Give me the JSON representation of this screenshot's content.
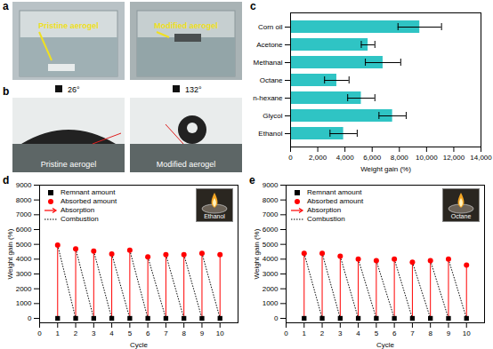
{
  "chart_data": [
    {
      "type": "bar",
      "title": "c",
      "orientation": "horizontal",
      "categories": [
        "Corn oil",
        "Acetone",
        "Methanal",
        "Octane",
        "n-hexane",
        "Glycol",
        "Ethanol"
      ],
      "values": [
        9500,
        5700,
        6800,
        3400,
        5200,
        7500,
        3900
      ],
      "errors": [
        1600,
        500,
        1300,
        900,
        1000,
        1000,
        1000
      ],
      "color": "#2fc4c4",
      "xlabel": "Weight gain (%)",
      "xlim": [
        0,
        14000
      ],
      "xticks": [
        0,
        2000,
        4000,
        6000,
        8000,
        10000,
        12000,
        14000
      ],
      "grid": false
    },
    {
      "type": "scatter",
      "title": "d",
      "x": [
        1,
        2,
        3,
        4,
        5,
        6,
        7,
        8,
        9,
        10
      ],
      "series": [
        {
          "name": "Remnant amount",
          "color": "#000000",
          "marker": "square",
          "values": [
            0,
            0,
            0,
            0,
            0,
            0,
            0,
            0,
            0,
            0
          ]
        },
        {
          "name": "Absorbed amount",
          "color": "#ff0000",
          "marker": "circle",
          "values": [
            4950,
            4700,
            4550,
            4350,
            4600,
            4150,
            4300,
            4300,
            4400,
            4300
          ]
        }
      ],
      "connectors": [
        {
          "name": "Absorption",
          "color": "#ff0000",
          "line_style": "solid"
        },
        {
          "name": "Combustion",
          "color": "#000000",
          "line_style": "dotted"
        }
      ],
      "inset_label": "Ethanol",
      "xlabel": "Cycle",
      "ylabel": "Weight gain (%)",
      "xlim": [
        0,
        11
      ],
      "xticks": [
        0,
        1,
        2,
        3,
        4,
        5,
        6,
        7,
        8,
        9,
        10
      ],
      "ylim": [
        -300,
        9000
      ],
      "yticks": [
        0,
        1000,
        2000,
        3000,
        4000,
        5000,
        6000,
        7000,
        8000,
        9000
      ],
      "legend": "top-left",
      "grid": false
    },
    {
      "type": "scatter",
      "title": "e",
      "x": [
        1,
        2,
        3,
        4,
        5,
        6,
        7,
        8,
        9,
        10
      ],
      "series": [
        {
          "name": "Remnant amount",
          "color": "#000000",
          "marker": "square",
          "values": [
            0,
            0,
            0,
            0,
            0,
            0,
            0,
            0,
            0,
            0
          ]
        },
        {
          "name": "Absorbed amount",
          "color": "#ff0000",
          "marker": "circle",
          "values": [
            4400,
            4400,
            4200,
            4000,
            3900,
            4000,
            3800,
            3900,
            4000,
            3600
          ]
        }
      ],
      "connectors": [
        {
          "name": "Absorption",
          "color": "#ff0000",
          "line_style": "solid"
        },
        {
          "name": "Combustion",
          "color": "#000000",
          "line_style": "dotted"
        }
      ],
      "inset_label": "Octane",
      "xlabel": "Cycle",
      "ylabel": "Weight gain (%)",
      "xlim": [
        0,
        11
      ],
      "xticks": [
        0,
        1,
        2,
        3,
        4,
        5,
        6,
        7,
        8,
        9,
        10
      ],
      "ylim": [
        -300,
        9000
      ],
      "yticks": [
        0,
        1000,
        2000,
        3000,
        4000,
        5000,
        6000,
        7000,
        8000,
        9000
      ],
      "legend": "top-left",
      "grid": false
    }
  ],
  "photos": [
    {
      "title": "a",
      "labels": [
        "Pristine aerogel",
        "Modified aerogel"
      ]
    },
    {
      "title": "b",
      "images": [
        {
          "label": "Pristine aerogel",
          "angle": "26°"
        },
        {
          "label": "Modified aerogel",
          "angle": "132°"
        }
      ]
    }
  ]
}
